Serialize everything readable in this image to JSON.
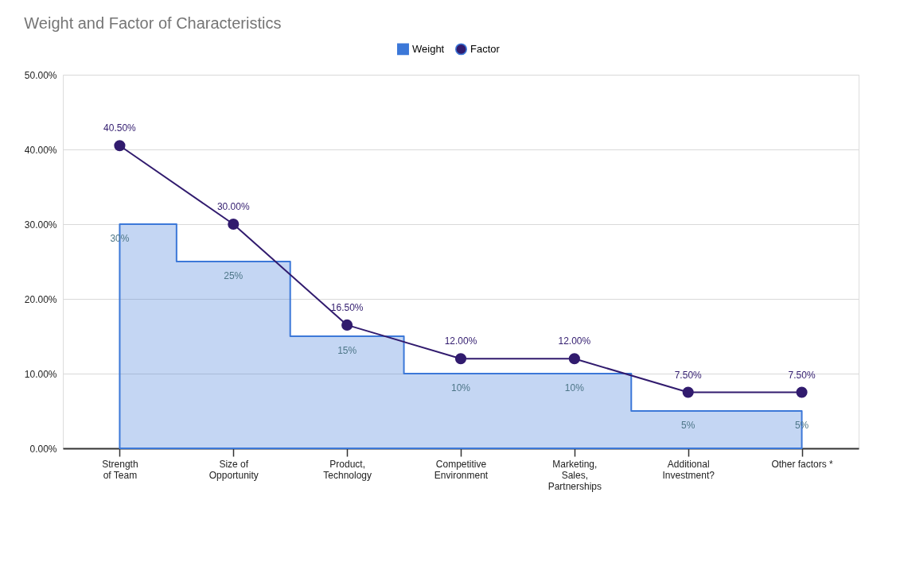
{
  "chart_data": {
    "type": "line",
    "title": "Weight and Factor of Characteristics",
    "categories": [
      "Strength of Team",
      "Size of Opportunity",
      "Product, Technology",
      "Competitive Environment",
      "Marketing, Sales, Partnerships",
      "Additional Investment?",
      "Other factors *"
    ],
    "series": [
      {
        "name": "Weight",
        "type": "area",
        "color": "#3c78d8",
        "values": [
          30,
          25,
          15,
          10,
          10,
          5,
          5
        ],
        "value_labels": [
          "30%",
          "25%",
          "15%",
          "10%",
          "10%",
          "5%",
          "5%"
        ]
      },
      {
        "name": "Factor",
        "color": "#311b6e",
        "marker": "circle",
        "values": [
          40.5,
          30,
          16.5,
          12,
          12,
          7.5,
          7.5
        ],
        "value_labels": [
          "40.50%",
          "30.00%",
          "16.50%",
          "12.00%",
          "12.00%",
          "7.50%",
          "7.50%"
        ]
      }
    ],
    "ylim": [
      0,
      50
    ],
    "yticks": [
      {
        "value": 0,
        "label": "0.00%"
      },
      {
        "value": 10,
        "label": "10.00%"
      },
      {
        "value": 20,
        "label": "20.00%"
      },
      {
        "value": 30,
        "label": "30.00%"
      },
      {
        "value": 40,
        "label": "40.00%"
      },
      {
        "value": 50,
        "label": "50.00%"
      }
    ],
    "grid": "y",
    "legend": "top"
  }
}
